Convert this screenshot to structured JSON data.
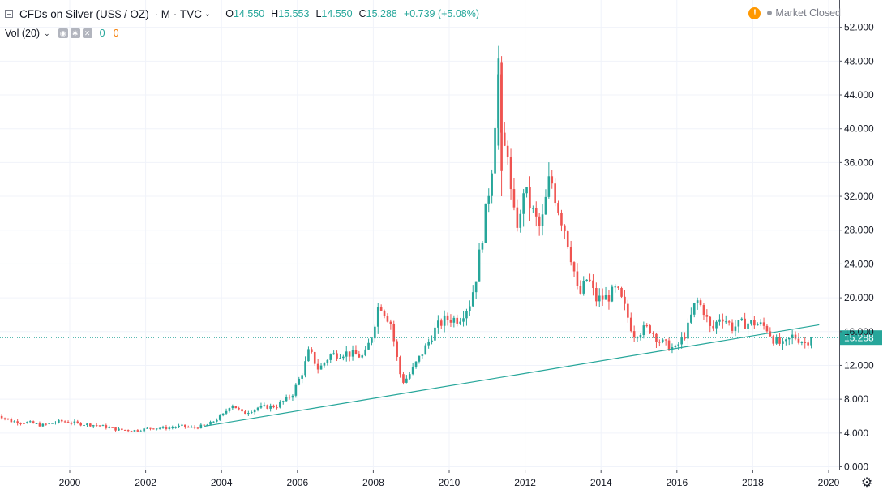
{
  "header": {
    "title": "CFDs on Silver (US$ / OZ)",
    "interval": "M",
    "source": "TVC",
    "open_label": "O",
    "open": "14.550",
    "high_label": "H",
    "high": "15.553",
    "low_label": "L",
    "low": "14.550",
    "close_label": "C",
    "close": "15.288",
    "change": "+0.739 (+5.08%)"
  },
  "volume": {
    "label": "Vol (20)",
    "value1": "0",
    "value2": "0"
  },
  "status": {
    "warning_glyph": "!",
    "text": "Market Closed"
  },
  "chart_data": {
    "type": "candlestick",
    "x_ticks": [
      "2000",
      "2002",
      "2004",
      "2006",
      "2008",
      "2010",
      "2012",
      "2014",
      "2016",
      "2018",
      "2020"
    ],
    "y_ticks": [
      "52.000",
      "48.000",
      "44.000",
      "40.000",
      "36.000",
      "32.000",
      "28.000",
      "24.000",
      "20.000",
      "16.000",
      "12.000",
      "8.000",
      "4.000",
      "0.000"
    ],
    "ylim": [
      0,
      52
    ],
    "xlim": [
      1998.15,
      2020.22
    ],
    "grid": true,
    "last_price": 15.288,
    "last_price_label": "15.288",
    "up_color": "#26a69a",
    "down_color": "#ef5350",
    "trendline": {
      "from": [
        2003.55,
        4.8
      ],
      "to": [
        2019.75,
        16.8
      ],
      "color": "#26a69a"
    },
    "anchors": [
      [
        1998.0,
        6.5
      ],
      [
        1998.5,
        5.4
      ],
      [
        1999.0,
        5.2
      ],
      [
        1999.3,
        4.9
      ],
      [
        1999.8,
        5.4
      ],
      [
        2000.3,
        5.1
      ],
      [
        2000.8,
        4.9
      ],
      [
        2001.3,
        4.4
      ],
      [
        2001.8,
        4.3
      ],
      [
        2002.2,
        4.6
      ],
      [
        2002.6,
        4.6
      ],
      [
        2003.0,
        4.8
      ],
      [
        2003.3,
        4.6
      ],
      [
        2003.7,
        5.0
      ],
      [
        2004.1,
        6.2
      ],
      [
        2004.3,
        7.5
      ],
      [
        2004.6,
        6.3
      ],
      [
        2005.0,
        7.0
      ],
      [
        2005.5,
        7.2
      ],
      [
        2005.9,
        8.5
      ],
      [
        2006.2,
        11.5
      ],
      [
        2006.35,
        13.8
      ],
      [
        2006.6,
        11.5
      ],
      [
        2006.9,
        13.2
      ],
      [
        2007.3,
        13.5
      ],
      [
        2007.8,
        13.0
      ],
      [
        2008.0,
        15.5
      ],
      [
        2008.2,
        19.5
      ],
      [
        2008.5,
        17.0
      ],
      [
        2008.7,
        12.0
      ],
      [
        2008.8,
        10.0
      ],
      [
        2008.95,
        10.6
      ],
      [
        2009.4,
        14.0
      ],
      [
        2009.7,
        16.5
      ],
      [
        2009.95,
        17.5
      ],
      [
        2010.3,
        17.5
      ],
      [
        2010.6,
        19.5
      ],
      [
        2010.75,
        22.5
      ],
      [
        2010.9,
        27.0
      ],
      [
        2011.05,
        31.5
      ],
      [
        2011.2,
        37.0
      ],
      [
        2011.32,
        47.5
      ],
      [
        2011.45,
        35.0
      ],
      [
        2011.55,
        40.0
      ],
      [
        2011.7,
        30.0
      ],
      [
        2011.9,
        28.5
      ],
      [
        2012.0,
        33.0
      ],
      [
        2012.25,
        30.0
      ],
      [
        2012.45,
        28.0
      ],
      [
        2012.7,
        34.5
      ],
      [
        2012.95,
        30.0
      ],
      [
        2013.1,
        28.0
      ],
      [
        2013.3,
        24.0
      ],
      [
        2013.45,
        20.0
      ],
      [
        2013.7,
        22.5
      ],
      [
        2013.9,
        19.8
      ],
      [
        2014.2,
        20.0
      ],
      [
        2014.45,
        21.0
      ],
      [
        2014.65,
        19.0
      ],
      [
        2014.9,
        15.7
      ],
      [
        2015.3,
        16.5
      ],
      [
        2015.6,
        14.8
      ],
      [
        2015.85,
        14.2
      ],
      [
        2016.0,
        13.9
      ],
      [
        2016.3,
        16.0
      ],
      [
        2016.55,
        19.8
      ],
      [
        2016.75,
        18.5
      ],
      [
        2016.95,
        16.0
      ],
      [
        2017.2,
        18.0
      ],
      [
        2017.5,
        16.5
      ],
      [
        2017.8,
        17.0
      ],
      [
        2018.1,
        17.0
      ],
      [
        2018.4,
        16.5
      ],
      [
        2018.6,
        15.0
      ],
      [
        2018.85,
        14.3
      ],
      [
        2019.1,
        15.5
      ],
      [
        2019.3,
        15.0
      ],
      [
        2019.45,
        14.6
      ],
      [
        2019.55,
        15.3
      ]
    ]
  }
}
